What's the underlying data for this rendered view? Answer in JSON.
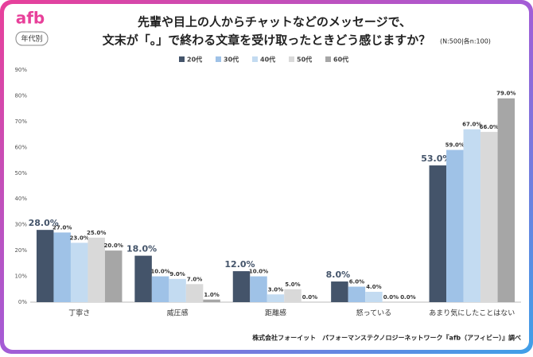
{
  "header": {
    "logo": "afb",
    "badge": "年代別"
  },
  "footer": "株式会社フォーイット　パフォーマンステクノロジーネットワーク『afb（アフィビー）』調べ",
  "chart_data": {
    "type": "bar",
    "title": [
      "先輩や目上の人からチャットなどのメッセージで、",
      "文末が「。」で終わる文章を受け取ったときどう感じますか？"
    ],
    "subtitle": "(N:500|各n:100)",
    "categories": [
      "丁寧さ",
      "威圧感",
      "距離感",
      "怒っている",
      "あまり気にしたことはない"
    ],
    "series": [
      {
        "name": "20代",
        "color": "#44546a",
        "values": [
          28,
          18,
          12,
          8,
          53
        ],
        "value_labels": [
          "28.0%",
          "18.0%",
          "12.0%",
          "8.0%",
          "53.0%"
        ]
      },
      {
        "name": "30代",
        "color": "#9fc2e7",
        "values": [
          27,
          10,
          10,
          6,
          59
        ],
        "value_labels": [
          "27.0%",
          "10.0%",
          "10.0%",
          "6.0%",
          "59.0%"
        ]
      },
      {
        "name": "40代",
        "color": "#c3dbf1",
        "values": [
          23,
          9,
          3,
          4,
          67
        ],
        "value_labels": [
          "23.0%",
          "9.0%",
          "3.0%",
          "4.0%",
          "67.0%"
        ]
      },
      {
        "name": "50代",
        "color": "#d9d9d9",
        "values": [
          25,
          7,
          5,
          0,
          66
        ],
        "value_labels": [
          "25.0%",
          "7.0%",
          "5.0%",
          "0.0%",
          "66.0%"
        ]
      },
      {
        "name": "60代",
        "color": "#a6a6a6",
        "values": [
          20,
          1,
          0,
          0,
          79
        ],
        "value_labels": [
          "20.0%",
          "1.0%",
          "0.0%",
          "0.0%",
          "79.0%"
        ]
      }
    ],
    "ylim": [
      0,
      90
    ],
    "yticks": [
      {
        "value": 0,
        "label": "0%"
      },
      {
        "value": 10,
        "label": "10%"
      },
      {
        "value": 20,
        "label": "20%"
      },
      {
        "value": 30,
        "label": "30%"
      },
      {
        "value": 40,
        "label": "40%"
      },
      {
        "value": 50,
        "label": "50%"
      },
      {
        "value": 60,
        "label": "60%"
      },
      {
        "value": 70,
        "label": "70%"
      },
      {
        "value": 80,
        "label": "80%"
      },
      {
        "value": 90,
        "label": "90%"
      }
    ],
    "grid": false
  }
}
